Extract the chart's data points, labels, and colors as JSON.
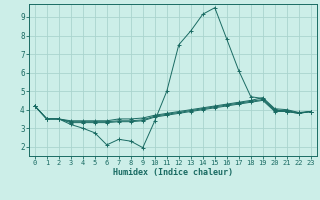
{
  "xlabel": "Humidex (Indice chaleur)",
  "bg_color": "#cceee8",
  "grid_color": "#aad4ce",
  "line_color": "#1a6b63",
  "xlim": [
    -0.5,
    23.5
  ],
  "ylim": [
    1.5,
    9.7
  ],
  "xtick_labels": [
    "0",
    "1",
    "2",
    "3",
    "4",
    "5",
    "6",
    "7",
    "8",
    "9",
    "10",
    "11",
    "12",
    "13",
    "14",
    "15",
    "16",
    "17",
    "18",
    "19",
    "20",
    "21",
    "22",
    "23"
  ],
  "xticks": [
    0,
    1,
    2,
    3,
    4,
    5,
    6,
    7,
    8,
    9,
    10,
    11,
    12,
    13,
    14,
    15,
    16,
    17,
    18,
    19,
    20,
    21,
    22,
    23
  ],
  "yticks": [
    2,
    3,
    4,
    5,
    6,
    7,
    8,
    9
  ],
  "main_line": {
    "x": [
      0,
      1,
      2,
      3,
      4,
      5,
      6,
      7,
      8,
      9,
      10,
      11,
      12,
      13,
      14,
      15,
      16,
      17,
      18,
      19,
      20,
      21,
      22,
      23
    ],
    "y": [
      4.2,
      3.5,
      3.5,
      3.2,
      3.0,
      2.75,
      2.1,
      2.4,
      2.3,
      1.95,
      3.4,
      5.0,
      7.5,
      8.25,
      9.15,
      9.5,
      7.8,
      6.1,
      4.7,
      4.6,
      4.0,
      3.9,
      3.8,
      3.9
    ]
  },
  "flat_lines": [
    {
      "x": [
        0,
        1,
        2,
        3,
        4,
        5,
        6,
        7,
        8,
        9,
        10,
        11,
        12,
        13,
        14,
        15,
        16,
        17,
        18,
        19,
        20,
        21,
        22,
        23
      ],
      "y": [
        4.2,
        3.5,
        3.5,
        3.4,
        3.4,
        3.4,
        3.4,
        3.5,
        3.5,
        3.55,
        3.7,
        3.8,
        3.9,
        4.0,
        4.1,
        4.2,
        4.3,
        4.4,
        4.5,
        4.65,
        4.05,
        4.0,
        3.85,
        3.9
      ]
    },
    {
      "x": [
        0,
        1,
        2,
        3,
        4,
        5,
        6,
        7,
        8,
        9,
        10,
        11,
        12,
        13,
        14,
        15,
        16,
        17,
        18,
        19,
        20,
        21,
        22,
        23
      ],
      "y": [
        4.2,
        3.5,
        3.5,
        3.35,
        3.35,
        3.35,
        3.35,
        3.4,
        3.4,
        3.45,
        3.65,
        3.75,
        3.85,
        3.95,
        4.05,
        4.15,
        4.25,
        4.35,
        4.45,
        4.55,
        3.95,
        3.95,
        3.82,
        3.9
      ]
    },
    {
      "x": [
        0,
        1,
        2,
        3,
        4,
        5,
        6,
        7,
        8,
        9,
        10,
        11,
        12,
        13,
        14,
        15,
        16,
        17,
        18,
        19,
        20,
        21,
        22,
        23
      ],
      "y": [
        4.2,
        3.5,
        3.5,
        3.3,
        3.3,
        3.3,
        3.3,
        3.35,
        3.35,
        3.4,
        3.6,
        3.7,
        3.8,
        3.9,
        4.0,
        4.1,
        4.2,
        4.3,
        4.4,
        4.5,
        3.9,
        3.9,
        3.8,
        3.9
      ]
    }
  ]
}
